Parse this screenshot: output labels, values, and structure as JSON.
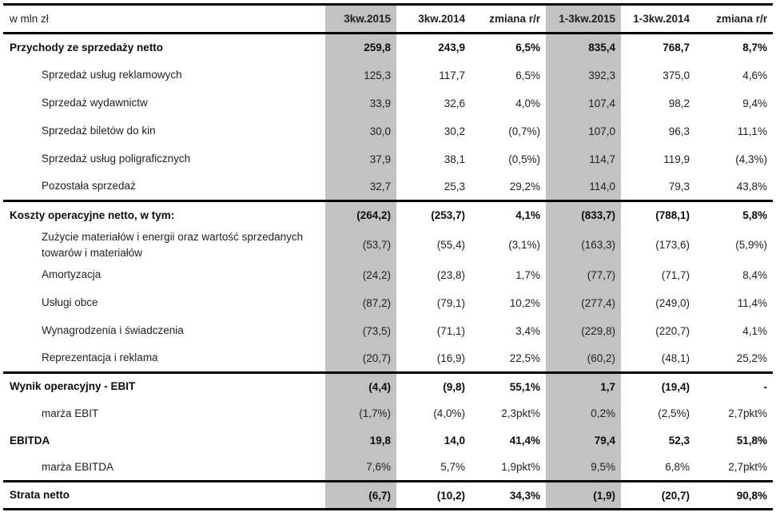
{
  "chart_data": {
    "type": "table",
    "unit_label": "w mln zł",
    "columns": [
      "3kw.2015",
      "3kw.2014",
      "zmiana r/r",
      "1-3kw.2015",
      "1-3kw.2014",
      "zmiana r/r"
    ],
    "highlighted_columns": [
      "3kw.2015",
      "1-3kw.2015"
    ],
    "highlight_color": "#c2c2c2",
    "rows": [
      {
        "label": "Przychody ze sprzedaży netto",
        "bold": true,
        "indent": false,
        "section_start": true,
        "values": [
          "259,8",
          "243,9",
          "6,5%",
          "835,4",
          "768,7",
          "8,7%"
        ]
      },
      {
        "label": "Sprzedaż usług reklamowych",
        "bold": false,
        "indent": true,
        "values": [
          "125,3",
          "117,7",
          "6,5%",
          "392,3",
          "375,0",
          "4,6%"
        ]
      },
      {
        "label": "Sprzedaż wydawnictw",
        "bold": false,
        "indent": true,
        "values": [
          "33,9",
          "32,6",
          "4,0%",
          "107,4",
          "98,2",
          "9,4%"
        ]
      },
      {
        "label": "Sprzedaż biletów do kin",
        "bold": false,
        "indent": true,
        "values": [
          "30,0",
          "30,2",
          "(0,7%)",
          "107,0",
          "96,3",
          "11,1%"
        ]
      },
      {
        "label": "Sprzedaż usług poligraficznych",
        "bold": false,
        "indent": true,
        "values": [
          "37,9",
          "38,1",
          "(0,5%)",
          "114,7",
          "119,9",
          "(4,3%)"
        ]
      },
      {
        "label": "Pozostała sprzedaż",
        "bold": false,
        "indent": true,
        "values": [
          "32,7",
          "25,3",
          "29,2%",
          "114,0",
          "79,3",
          "43,8%"
        ]
      },
      {
        "label": "Koszty operacyjne netto, w tym:",
        "bold": true,
        "indent": false,
        "section_start": true,
        "values": [
          "(264,2)",
          "(253,7)",
          "4,1%",
          "(833,7)",
          "(788,1)",
          "5,8%"
        ]
      },
      {
        "label": "Zużycie materiałów i energii oraz wartość sprzedanych\ntowarów i materiałów",
        "bold": false,
        "indent": true,
        "tall": true,
        "values": [
          "(53,7)",
          "(55,4)",
          "(3,1%)",
          "(163,3)",
          "(173,6)",
          "(5,9%)"
        ]
      },
      {
        "label": "Amortyzacja",
        "bold": false,
        "indent": true,
        "values": [
          "(24,2)",
          "(23,8)",
          "1,7%",
          "(77,7)",
          "(71,7)",
          "8,4%"
        ]
      },
      {
        "label": "Usługi obce",
        "bold": false,
        "indent": true,
        "values": [
          "(87,2)",
          "(79,1)",
          "10,2%",
          "(277,4)",
          "(249,0)",
          "11,4%"
        ]
      },
      {
        "label": "Wynagrodzenia i świadczenia",
        "bold": false,
        "indent": true,
        "values": [
          "(73,5)",
          "(71,1)",
          "3,4%",
          "(229,8)",
          "(220,7)",
          "4,1%"
        ]
      },
      {
        "label": "Reprezentacja i reklama",
        "bold": false,
        "indent": true,
        "values": [
          "(20,7)",
          "(16,9)",
          "22,5%",
          "(60,2)",
          "(48,1)",
          "25,2%"
        ]
      },
      {
        "label": "Wynik operacyjny - EBIT",
        "bold": true,
        "indent": false,
        "section_start": true,
        "values": [
          "(4,4)",
          "(9,8)",
          "55,1%",
          "1,7",
          "(19,4)",
          "-"
        ]
      },
      {
        "label": "marża EBIT",
        "bold": false,
        "indent": true,
        "values": [
          "(1,7%)",
          "(4,0%)",
          "2,3pkt%",
          "0,2%",
          "(2,5%)",
          "2,7pkt%"
        ]
      },
      {
        "label": "EBITDA",
        "bold": true,
        "indent": false,
        "values": [
          "19,8",
          "14,0",
          "41,4%",
          "79,4",
          "52,3",
          "51,8%"
        ]
      },
      {
        "label": "marża EBITDA",
        "bold": false,
        "indent": true,
        "values": [
          "7,6%",
          "5,7%",
          "1,9pkt%",
          "9,5%",
          "6,8%",
          "2,7pkt%"
        ]
      },
      {
        "label": "Strata netto",
        "bold": true,
        "indent": false,
        "section_start": true,
        "values": [
          "(6,7)",
          "(10,2)",
          "34,3%",
          "(1,9)",
          "(20,7)",
          "90,8%"
        ]
      }
    ]
  }
}
